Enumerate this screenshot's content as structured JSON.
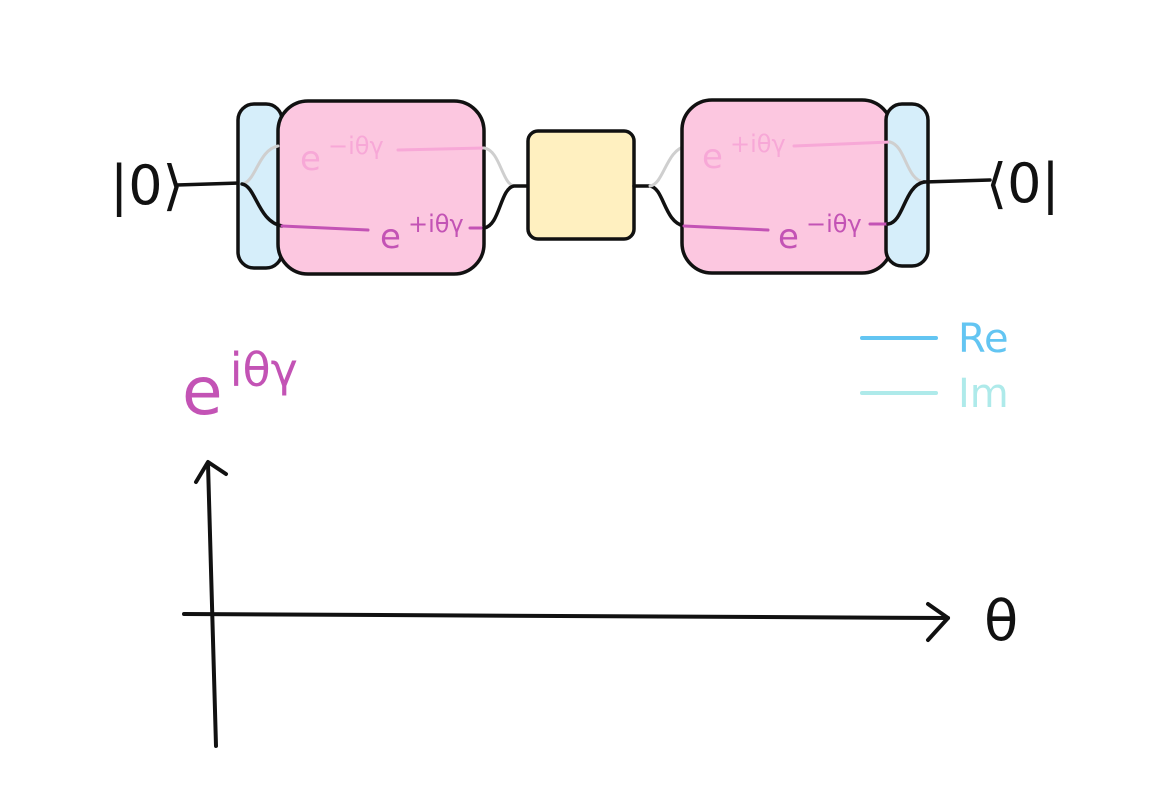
{
  "circuit": {
    "ket": "|0⟩",
    "bra": "⟨0|",
    "gates": [
      {
        "id": "left-pink",
        "upper": {
          "base": "e",
          "sup": "−iθγ"
        },
        "lower": {
          "base": "e",
          "sup": "+iθγ"
        }
      },
      {
        "id": "right-pink",
        "upper": {
          "base": "e",
          "sup": "+iθγ"
        },
        "lower": {
          "base": "e",
          "sup": "−iθγ"
        }
      }
    ]
  },
  "plot": {
    "title": {
      "base": "e",
      "sup": "iθγ"
    },
    "x_axis_label": "θ",
    "legend": [
      {
        "label": "Re",
        "color": "#63c5f2"
      },
      {
        "label": "Im",
        "color": "#aeeaea"
      }
    ]
  },
  "colors": {
    "blue_box": "#d6eefa",
    "pink_box": "#fcc7e0",
    "yellow_box": "#fff0c0",
    "magenta_text": "#c353b5",
    "pink_text": "#f7a8d7",
    "grey_wire": "#cfcfcf"
  }
}
